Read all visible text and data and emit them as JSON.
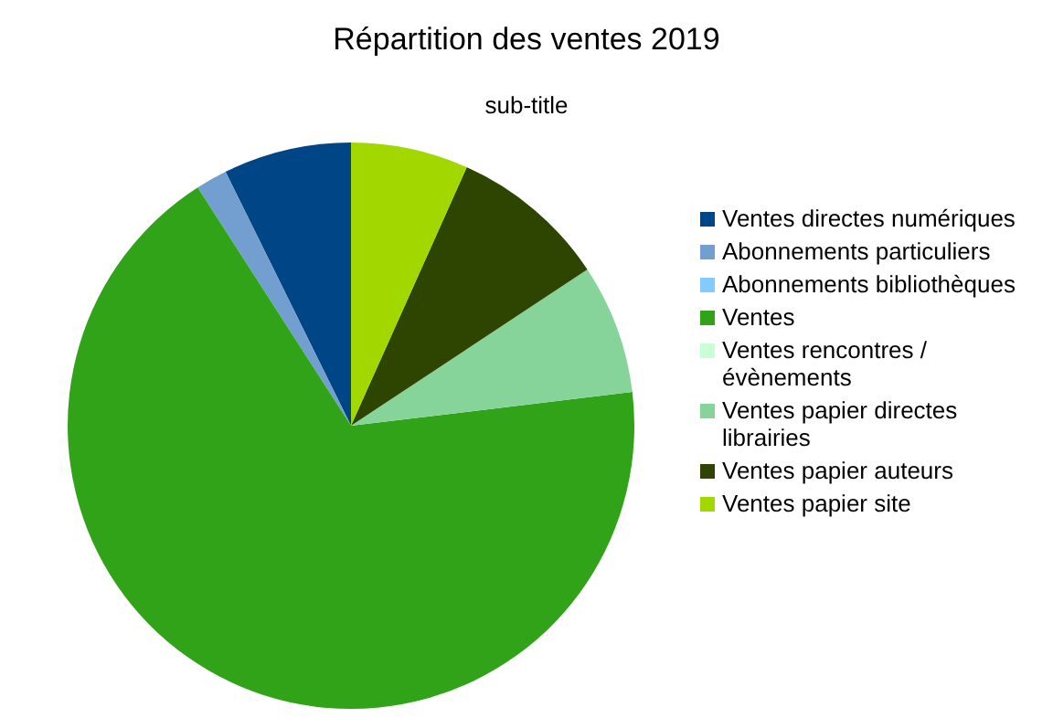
{
  "chart_data": {
    "type": "pie",
    "title": "Répartition des ventes 2019",
    "subtitle": "sub-title",
    "categories": [
      "Ventes directes numériques",
      "Abonnements particuliers",
      "Abonnements bibliothèques",
      "Ventes",
      "Ventes rencontres / évènements",
      "Ventes papier directes librairies",
      "Ventes papier auteurs",
      "Ventes papier site"
    ],
    "values": [
      7.3,
      1.8,
      0,
      67.8,
      0,
      7.4,
      9.0,
      6.7
    ],
    "colors": [
      "#004586",
      "#729fcf",
      "#83caff",
      "#31a318",
      "#c8ffd4",
      "#87d49b",
      "#2d4500",
      "#a2d800"
    ],
    "legend": "right"
  }
}
